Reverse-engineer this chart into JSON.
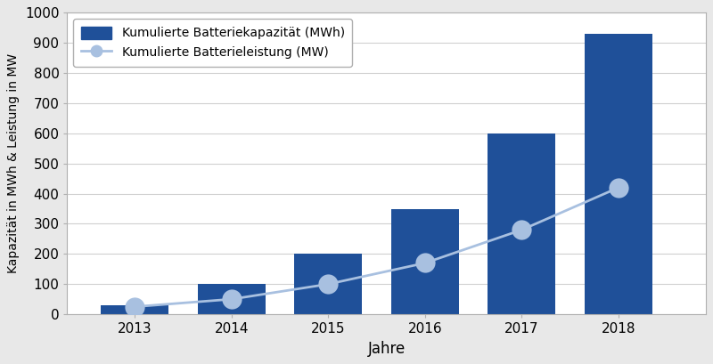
{
  "years": [
    2013,
    2014,
    2015,
    2016,
    2017,
    2018
  ],
  "bar_values": [
    30,
    100,
    200,
    350,
    600,
    930
  ],
  "line_values": [
    25,
    50,
    100,
    170,
    280,
    420
  ],
  "bar_color": "#1f5099",
  "line_color": "#a8c0e0",
  "marker_color": "#a8c0e0",
  "marker_edge_color": "#a8c0e0",
  "bar_label": "Kumulierte Batteriekapazität (MWh)",
  "line_label": "Kumulierte Batterieleistung (MW)",
  "xlabel": "Jahre",
  "ylabel": "Kapazität in MWh & Leistung in MW",
  "ylim": [
    0,
    1000
  ],
  "yticks": [
    0,
    100,
    200,
    300,
    400,
    500,
    600,
    700,
    800,
    900,
    1000
  ],
  "background_color": "#e8e8e8",
  "plot_bg_color": "#ffffff",
  "grid_color": "#d0d0d0",
  "bar_width": 0.7,
  "xlim_left": 2012.3,
  "xlim_right": 2018.9
}
